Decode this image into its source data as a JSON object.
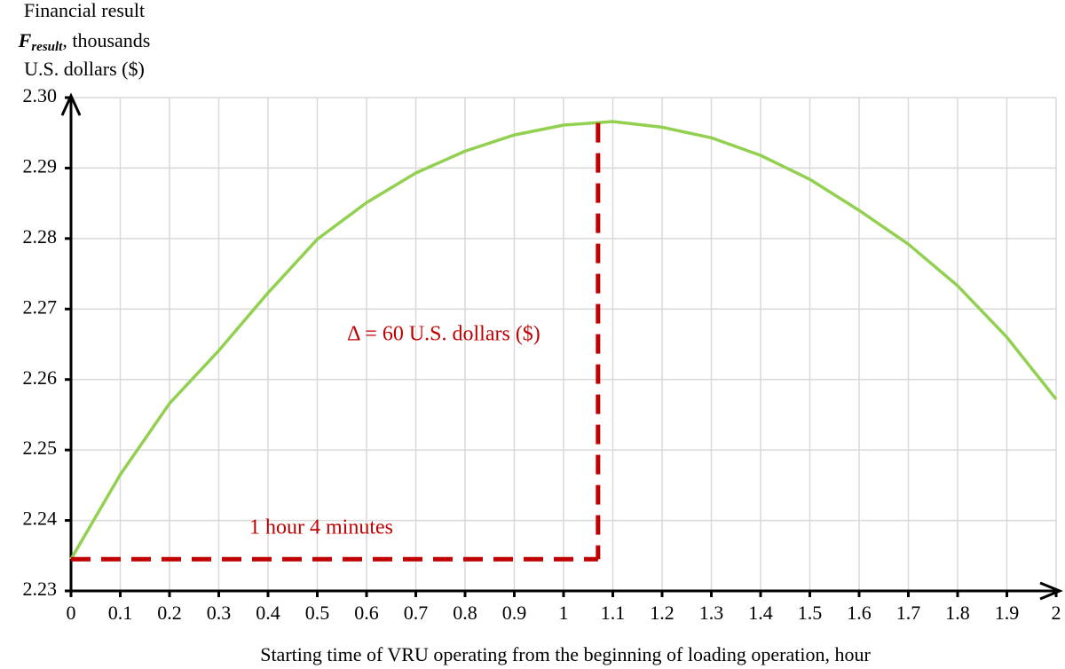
{
  "chart_data": {
    "type": "line",
    "ylabel": {
      "line1": "Financial result",
      "symbol": "F",
      "subscript": "result",
      "line2_rest": ", thousands",
      "line3": "U.S. dollars ($)"
    },
    "xlabel": "Starting time of VRU operating from the beginning of loading operation, hour",
    "x": [
      0,
      0.1,
      0.2,
      0.3,
      0.4,
      0.5,
      0.6,
      0.7,
      0.8,
      0.9,
      1.0,
      1.1,
      1.2,
      1.3,
      1.4,
      1.5,
      1.6,
      1.7,
      1.8,
      1.9,
      2.0
    ],
    "series": [
      {
        "color": "#92d050",
        "values": [
          2.2345,
          2.2465,
          2.2566,
          2.2641,
          2.2723,
          2.2799,
          2.2851,
          2.2893,
          2.2924,
          2.2947,
          2.2961,
          2.2966,
          2.2958,
          2.2943,
          2.2918,
          2.2884,
          2.284,
          2.2792,
          2.2733,
          2.266,
          2.2572
        ]
      }
    ],
    "reference": {
      "x": 1.07,
      "y_low": 2.2345,
      "y_high": 2.2964,
      "color": "#c00000"
    },
    "annotations": {
      "delta": "Δ = 60 U.S. dollars ($)",
      "time": "1 hour 4 minutes"
    },
    "xlim": [
      0,
      2
    ],
    "xticks": [
      0,
      0.1,
      0.2,
      0.3,
      0.4,
      0.5,
      0.6,
      0.7,
      0.8,
      0.9,
      1,
      1.1,
      1.2,
      1.3,
      1.4,
      1.5,
      1.6,
      1.7,
      1.8,
      1.9,
      2
    ],
    "ylim": [
      2.23,
      2.3
    ],
    "yticks": [
      2.23,
      2.24,
      2.25,
      2.26,
      2.27,
      2.28,
      2.29,
      {
        "value": 2.3,
        "label": "2.30"
      }
    ],
    "grid": true
  }
}
